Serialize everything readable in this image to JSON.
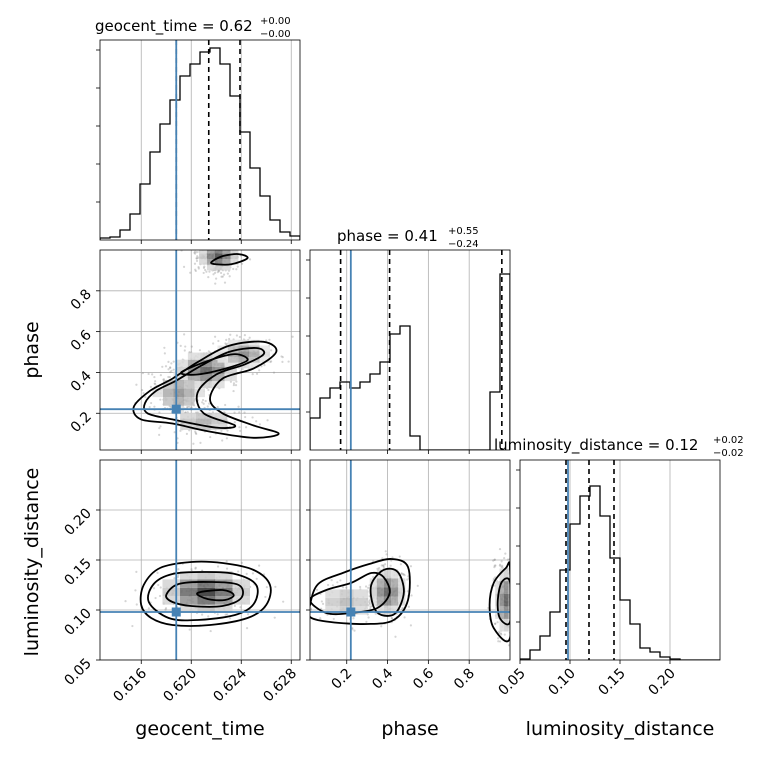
{
  "chart_data": {
    "type": "corner",
    "parameters": [
      "geocent_time",
      "phase",
      "luminosity_distance"
    ],
    "axis_labels": {
      "geocent_time": "geocent_time",
      "phase": "phase",
      "luminosity_distance": "luminosity_distance"
    },
    "titles": {
      "geocent_time": {
        "name": "geocent_time",
        "value": "0.62",
        "plus": "+0.00",
        "minus": "−0.00"
      },
      "phase": {
        "name": "phase",
        "value": "0.41",
        "plus": "+0.55",
        "minus": "−0.24"
      },
      "luminosity_distance": {
        "name": "luminosity_distance",
        "value": "0.12",
        "plus": "+0.02",
        "minus": "−0.02"
      }
    },
    "ranges": {
      "geocent_time": [
        0.6127,
        0.6287
      ],
      "phase": [
        0.02,
        1.0
      ],
      "luminosity_distance": [
        0.05,
        0.25
      ]
    },
    "ticks": {
      "geocent_time": [
        {
          "v": 0.616,
          "label": "0.616"
        },
        {
          "v": 0.62,
          "label": "0.620"
        },
        {
          "v": 0.624,
          "label": "0.624"
        },
        {
          "v": 0.628,
          "label": "0.628"
        }
      ],
      "phase": [
        {
          "v": 0.2,
          "label": "0.2"
        },
        {
          "v": 0.4,
          "label": "0.4"
        },
        {
          "v": 0.6,
          "label": "0.6"
        },
        {
          "v": 0.8,
          "label": "0.8"
        }
      ],
      "luminosity_distance": [
        {
          "v": 0.05,
          "label": "0.05"
        },
        {
          "v": 0.1,
          "label": "0.10"
        },
        {
          "v": 0.15,
          "label": "0.15"
        },
        {
          "v": 0.2,
          "label": "0.20"
        }
      ]
    },
    "truths": {
      "geocent_time": 0.6188,
      "phase": 0.22,
      "luminosity_distance": 0.098
    },
    "quantiles": {
      "geocent_time": [
        0.6188,
        0.6214,
        0.6239
      ],
      "phase": [
        0.17,
        0.41,
        0.96
      ],
      "luminosity_distance": [
        0.096,
        0.119,
        0.144
      ]
    },
    "histograms": {
      "geocent_time": {
        "edges": [
          0.6127,
          0.6135,
          0.6143,
          0.6151,
          0.6159,
          0.6167,
          0.6175,
          0.6183,
          0.6191,
          0.6199,
          0.6207,
          0.6215,
          0.6223,
          0.6231,
          0.6239,
          0.6247,
          0.6255,
          0.6263,
          0.6271,
          0.6279,
          0.6287
        ],
        "counts": [
          0.01,
          0.015,
          0.05,
          0.13,
          0.28,
          0.44,
          0.58,
          0.7,
          0.82,
          0.88,
          0.94,
          0.96,
          0.88,
          0.72,
          0.54,
          0.36,
          0.22,
          0.1,
          0.04,
          0.02
        ]
      },
      "phase": {
        "edges": [
          0.02,
          0.069,
          0.118,
          0.167,
          0.216,
          0.265,
          0.314,
          0.363,
          0.412,
          0.461,
          0.51,
          0.559,
          0.608,
          0.657,
          0.706,
          0.755,
          0.804,
          0.853,
          0.902,
          0.951,
          1.0
        ],
        "counts": [
          0.16,
          0.26,
          0.31,
          0.34,
          0.31,
          0.34,
          0.38,
          0.44,
          0.58,
          0.62,
          0.07,
          0.0,
          0.0,
          0.0,
          0.0,
          0.0,
          0.0,
          0.0,
          0.29,
          0.88
        ]
      },
      "luminosity_distance": {
        "edges": [
          0.05,
          0.06,
          0.07,
          0.08,
          0.09,
          0.1,
          0.11,
          0.12,
          0.13,
          0.14,
          0.15,
          0.16,
          0.17,
          0.18,
          0.19,
          0.2,
          0.21,
          0.22,
          0.23,
          0.24,
          0.25
        ],
        "counts": [
          0.005,
          0.05,
          0.12,
          0.24,
          0.45,
          0.68,
          0.82,
          0.87,
          0.72,
          0.51,
          0.3,
          0.18,
          0.06,
          0.04,
          0.015,
          0.005,
          0.0,
          0.0,
          0.0,
          0.0
        ]
      }
    },
    "contours": {
      "phase_vs_geocent_time": [
        [
          [
            0.6167,
            0.31
          ],
          [
            0.6185,
            0.37
          ],
          [
            0.6205,
            0.45
          ],
          [
            0.623,
            0.53
          ],
          [
            0.6258,
            0.55
          ],
          [
            0.6268,
            0.5
          ],
          [
            0.625,
            0.42
          ],
          [
            0.6225,
            0.37
          ],
          [
            0.6215,
            0.27
          ],
          [
            0.6225,
            0.2
          ],
          [
            0.625,
            0.14
          ],
          [
            0.627,
            0.1
          ],
          [
            0.625,
            0.08
          ],
          [
            0.6215,
            0.11
          ],
          [
            0.6185,
            0.15
          ],
          [
            0.616,
            0.17
          ],
          [
            0.6154,
            0.23
          ]
        ],
        [
          [
            0.6172,
            0.31
          ],
          [
            0.6188,
            0.36
          ],
          [
            0.6207,
            0.43
          ],
          [
            0.623,
            0.5
          ],
          [
            0.6252,
            0.52
          ],
          [
            0.6258,
            0.49
          ],
          [
            0.6243,
            0.44
          ],
          [
            0.622,
            0.39
          ],
          [
            0.6205,
            0.3
          ],
          [
            0.621,
            0.2
          ],
          [
            0.6235,
            0.14
          ],
          [
            0.622,
            0.13
          ],
          [
            0.6185,
            0.17
          ],
          [
            0.6165,
            0.2
          ],
          [
            0.6163,
            0.25
          ]
        ],
        [
          [
            0.6192,
            0.4
          ],
          [
            0.6215,
            0.46
          ],
          [
            0.6235,
            0.49
          ],
          [
            0.6245,
            0.46
          ],
          [
            0.6228,
            0.42
          ],
          [
            0.6205,
            0.39
          ]
        ],
        [
          [
            0.6216,
            0.94
          ],
          [
            0.6225,
            0.97
          ],
          [
            0.6238,
            0.98
          ],
          [
            0.6245,
            0.96
          ],
          [
            0.6232,
            0.93
          ],
          [
            0.622,
            0.93
          ]
        ]
      ],
      "luminosity_distance_vs_geocent_time": [
        [
          [
            0.616,
            0.105
          ],
          [
            0.6162,
            0.125
          ],
          [
            0.6175,
            0.142
          ],
          [
            0.62,
            0.148
          ],
          [
            0.6225,
            0.147
          ],
          [
            0.625,
            0.14
          ],
          [
            0.6263,
            0.125
          ],
          [
            0.626,
            0.105
          ],
          [
            0.6245,
            0.092
          ],
          [
            0.6215,
            0.085
          ],
          [
            0.6185,
            0.085
          ],
          [
            0.6168,
            0.092
          ]
        ],
        [
          [
            0.6166,
            0.108
          ],
          [
            0.617,
            0.126
          ],
          [
            0.6185,
            0.136
          ],
          [
            0.621,
            0.138
          ],
          [
            0.6235,
            0.136
          ],
          [
            0.6252,
            0.125
          ],
          [
            0.625,
            0.106
          ],
          [
            0.6235,
            0.095
          ],
          [
            0.6205,
            0.09
          ],
          [
            0.6182,
            0.092
          ]
        ],
        [
          [
            0.618,
            0.115
          ],
          [
            0.619,
            0.126
          ],
          [
            0.6215,
            0.128
          ],
          [
            0.6238,
            0.125
          ],
          [
            0.624,
            0.112
          ],
          [
            0.6225,
            0.104
          ],
          [
            0.62,
            0.104
          ],
          [
            0.6185,
            0.108
          ]
        ],
        [
          [
            0.6205,
            0.117
          ],
          [
            0.6225,
            0.12
          ],
          [
            0.6234,
            0.115
          ],
          [
            0.6227,
            0.11
          ],
          [
            0.6213,
            0.111
          ]
        ]
      ],
      "luminosity_distance_vs_phase": [
        [
          [
            0.02,
            0.105
          ],
          [
            0.06,
            0.126
          ],
          [
            0.18,
            0.137
          ],
          [
            0.31,
            0.146
          ],
          [
            0.42,
            0.151
          ],
          [
            0.5,
            0.143
          ],
          [
            0.5,
            0.11
          ],
          [
            0.43,
            0.09
          ],
          [
            0.3,
            0.086
          ],
          [
            0.12,
            0.088
          ],
          [
            0.02,
            0.093
          ]
        ],
        [
          [
            0.02,
            0.11
          ],
          [
            0.1,
            0.12
          ],
          [
            0.22,
            0.127
          ],
          [
            0.32,
            0.137
          ],
          [
            0.38,
            0.133
          ],
          [
            0.41,
            0.117
          ],
          [
            0.35,
            0.102
          ],
          [
            0.22,
            0.097
          ],
          [
            0.1,
            0.097
          ]
        ],
        [
          [
            0.33,
            0.104
          ],
          [
            0.32,
            0.125
          ],
          [
            0.38,
            0.14
          ],
          [
            0.45,
            0.138
          ],
          [
            0.48,
            0.118
          ],
          [
            0.44,
            0.097
          ],
          [
            0.37,
            0.095
          ]
        ],
        [
          [
            0.92,
            0.082
          ],
          [
            0.9,
            0.105
          ],
          [
            0.92,
            0.127
          ],
          [
            0.98,
            0.142
          ],
          [
            1.0,
            0.142
          ],
          [
            1.0,
            0.072
          ]
        ],
        [
          [
            0.95,
            0.092
          ],
          [
            0.94,
            0.11
          ],
          [
            0.96,
            0.128
          ],
          [
            1.0,
            0.128
          ],
          [
            1.0,
            0.088
          ]
        ]
      ]
    },
    "density_blobs": {
      "phase_vs_geocent_time": [
        {
          "x": 0.6222,
          "y": 0.97,
          "sx": 0.0009,
          "sy": 0.04,
          "w": 0.9
        },
        {
          "x": 0.6212,
          "y": 0.41,
          "sx": 0.0014,
          "sy": 0.05,
          "w": 0.8
        },
        {
          "x": 0.619,
          "y": 0.3,
          "sx": 0.0012,
          "sy": 0.06,
          "w": 0.55
        },
        {
          "x": 0.6242,
          "y": 0.49,
          "sx": 0.0012,
          "sy": 0.04,
          "w": 0.6
        },
        {
          "x": 0.621,
          "y": 0.16,
          "sx": 0.0018,
          "sy": 0.04,
          "w": 0.4
        }
      ],
      "luminosity_distance_vs_geocent_time": [
        {
          "x": 0.6212,
          "y": 0.118,
          "sx": 0.002,
          "sy": 0.012,
          "w": 1.0
        }
      ],
      "luminosity_distance_vs_phase": [
        {
          "x": 0.4,
          "y": 0.118,
          "sx": 0.05,
          "sy": 0.013,
          "w": 0.8
        },
        {
          "x": 0.98,
          "y": 0.11,
          "sx": 0.03,
          "sy": 0.018,
          "w": 0.8
        },
        {
          "x": 0.2,
          "y": 0.108,
          "sx": 0.1,
          "sy": 0.012,
          "w": 0.35
        }
      ]
    }
  }
}
